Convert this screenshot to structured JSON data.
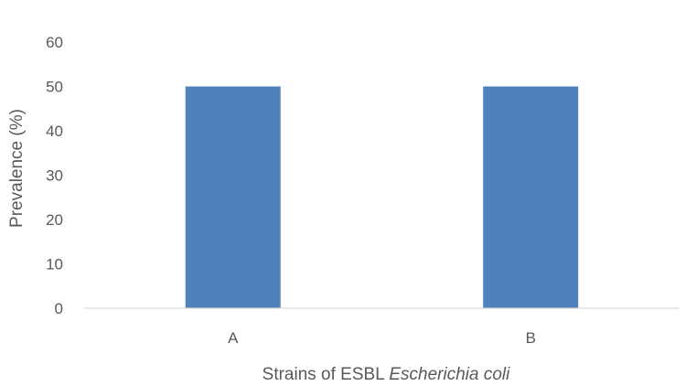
{
  "chart_data": {
    "type": "bar",
    "categories": [
      "A",
      "B"
    ],
    "values": [
      50,
      50
    ],
    "xlabel_prefix": "Strains of ESBL ",
    "xlabel_italic": "Escherichia coli",
    "ylabel": "Prevalence (%)",
    "ylim": [
      0,
      60
    ],
    "yticks": [
      "0",
      "10",
      "20",
      "30",
      "40",
      "50",
      "60"
    ],
    "grid": false,
    "legend": "none",
    "bar_color": "#4F81BD",
    "axis_color": "#D9D9D9"
  }
}
